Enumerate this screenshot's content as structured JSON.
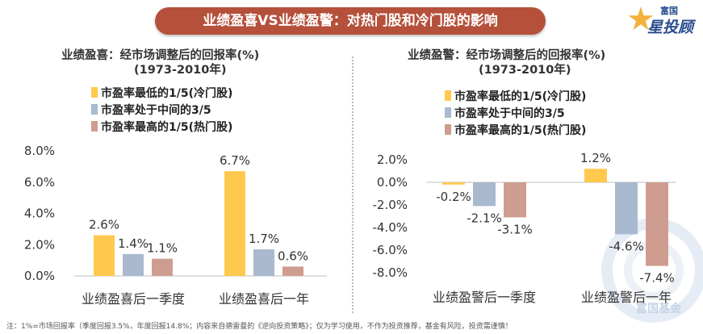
{
  "banner_title": "业绩盈喜VS业绩盈警：对热门股和冷门股的影响",
  "logo": {
    "top": "富国",
    "bottom": "星投顾",
    "icon": "star-icon",
    "color": "#f2b23c"
  },
  "watermark_text": "富国基金",
  "note": "注：1%=市场回报率（季度回报3.5%，年度回报14.8%；内容来自德雷曼的《逆向投资策略》；仅为学习使用，不作为投资推荐，基金有风险，投资需谨慎！",
  "colors": {
    "cold": "#ffc94e",
    "mid": "#a9b9cf",
    "hot": "#cf9d8f",
    "banner": "#b5503b"
  },
  "chart_data": [
    {
      "type": "bar",
      "title": "业绩盈喜：经市场调整后的回报率(%)",
      "subtitle": "(1973-2010年)",
      "categories": [
        "业绩盈喜后一季度",
        "业绩盈喜后一年"
      ],
      "series": [
        {
          "name": "市盈率最低的1/5(冷门股)",
          "values": [
            2.6,
            6.7
          ]
        },
        {
          "name": "市盈率处于中间的3/5",
          "values": [
            1.4,
            1.7
          ]
        },
        {
          "name": "市盈率最高的1/5(热门股)",
          "values": [
            1.1,
            0.6
          ]
        }
      ],
      "labels": [
        [
          "2.6%",
          "6.7%"
        ],
        [
          "1.4%",
          "1.7%"
        ],
        [
          "1.1%",
          "0.6%"
        ]
      ],
      "yticks": [
        "0.0%",
        "2.0%",
        "4.0%",
        "6.0%",
        "8.0%"
      ],
      "ylim": [
        0,
        8
      ],
      "xlabel": "",
      "ylabel": ""
    },
    {
      "type": "bar",
      "title": "业绩盈警：经市场调整后的回报率(%)",
      "subtitle": "(1973-2010年)",
      "categories": [
        "业绩盈警后一季度",
        "业绩盈警后一年"
      ],
      "series": [
        {
          "name": "市盈率最低的1/5(冷门股)",
          "values": [
            -0.2,
            1.2
          ]
        },
        {
          "name": "市盈率处于中间的3/5",
          "values": [
            -2.1,
            -4.6
          ]
        },
        {
          "name": "市盈率最高的1/5(热门股)",
          "values": [
            -3.1,
            -7.4
          ]
        }
      ],
      "labels": [
        [
          "-0.2%",
          "1.2%"
        ],
        [
          "-2.1%",
          "-4.6%"
        ],
        [
          "-3.1%",
          "-7.4%"
        ]
      ],
      "yticks": [
        "-8.0%",
        "-6.0%",
        "-4.0%",
        "-2.0%",
        "0.0%",
        "2.0%"
      ],
      "ylim": [
        -8,
        2
      ],
      "xlabel": "",
      "ylabel": ""
    }
  ]
}
